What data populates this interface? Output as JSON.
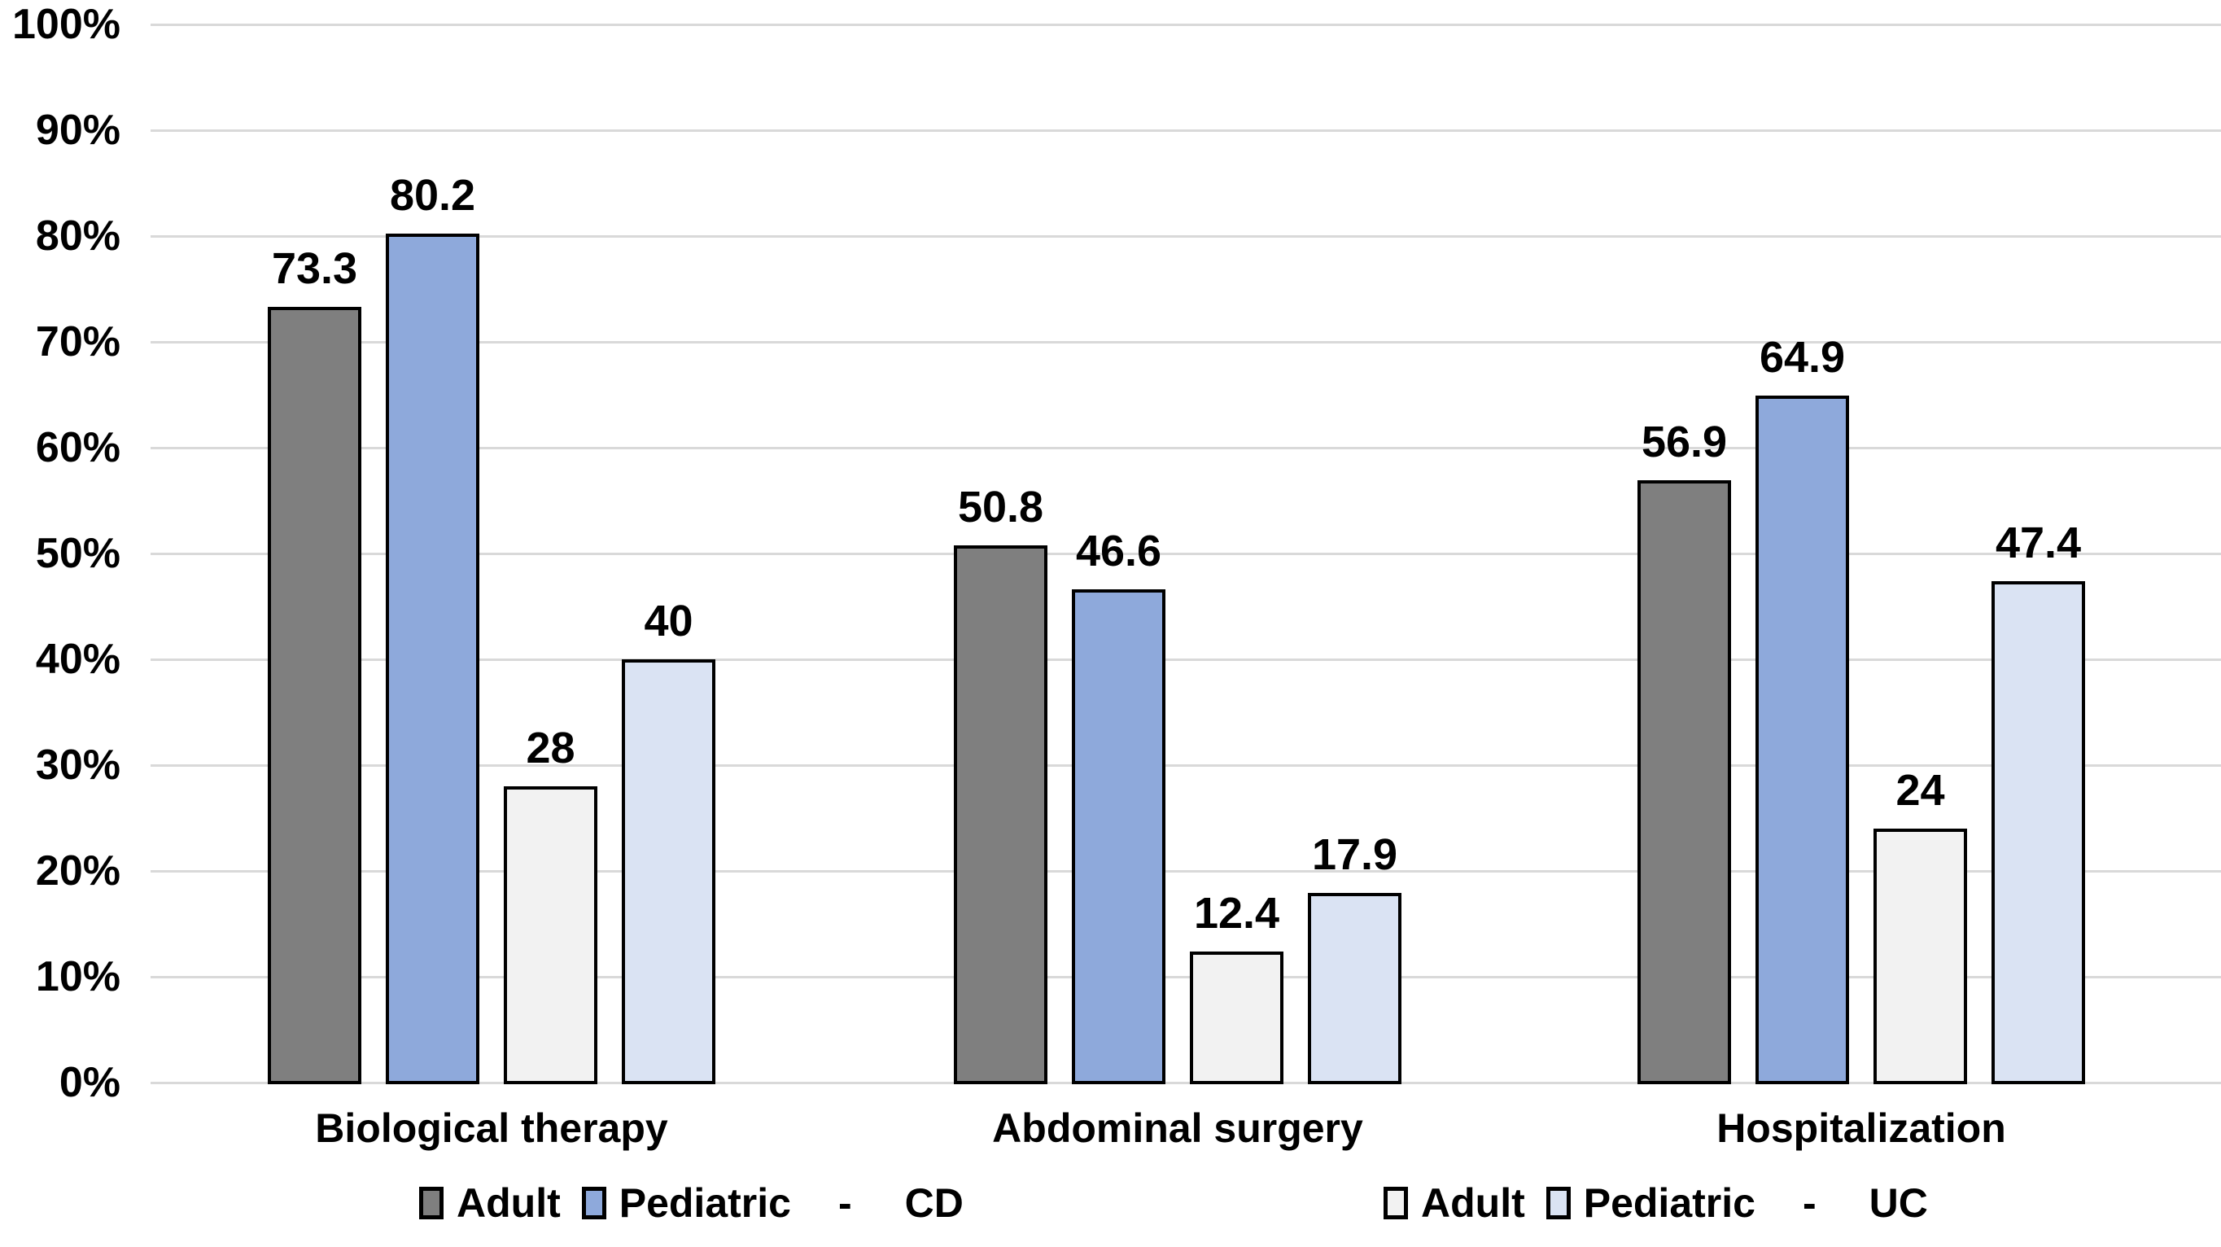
{
  "chart_data": {
    "type": "bar",
    "title": "",
    "categories": [
      "Biological therapy",
      "Abdominal surgery",
      "Hospitalization"
    ],
    "series": [
      {
        "name": "Adult",
        "disease_group": "CD",
        "color": "#7F7F7F",
        "values": [
          73.3,
          50.8,
          56.9
        ],
        "labels": [
          "73.3",
          "50.8",
          "56.9"
        ]
      },
      {
        "name": "Pediatric",
        "disease_group": "CD",
        "color": "#8EA9DB",
        "values": [
          80.2,
          46.6,
          64.9
        ],
        "labels": [
          "80.2",
          "46.6",
          "64.9"
        ]
      },
      {
        "name": "Adult",
        "disease_group": "UC",
        "color": "#F2F2F2",
        "values": [
          28,
          12.4,
          24
        ],
        "labels": [
          "28",
          "12.4",
          "24"
        ]
      },
      {
        "name": "Pediatric",
        "disease_group": "UC",
        "color": "#DAE3F3",
        "values": [
          40,
          17.9,
          47.4
        ],
        "labels": [
          "40",
          "17.9",
          "47.4"
        ]
      }
    ],
    "ylim": [
      0,
      100
    ],
    "ytick_step": 10,
    "ytick_labels": [
      "0%",
      "10%",
      "20%",
      "30%",
      "40%",
      "50%",
      "60%",
      "70%",
      "80%",
      "90%",
      "100%"
    ],
    "grid": true,
    "legend_position": "bottom",
    "legend_groups": [
      {
        "entries": [
          {
            "label": "Adult",
            "color": "#7F7F7F"
          },
          {
            "label": "Pediatric",
            "color": "#8EA9DB"
          }
        ],
        "separator": "-",
        "suffix": "CD"
      },
      {
        "entries": [
          {
            "label": "Adult",
            "color": "#F2F2F2"
          },
          {
            "label": "Pediatric",
            "color": "#DAE3F3"
          }
        ],
        "separator": "-",
        "suffix": "UC"
      }
    ],
    "colors": {
      "grid": "#D9D9D9",
      "bar_border": "#000000",
      "text": "#000000",
      "background": "#FFFFFF"
    }
  }
}
